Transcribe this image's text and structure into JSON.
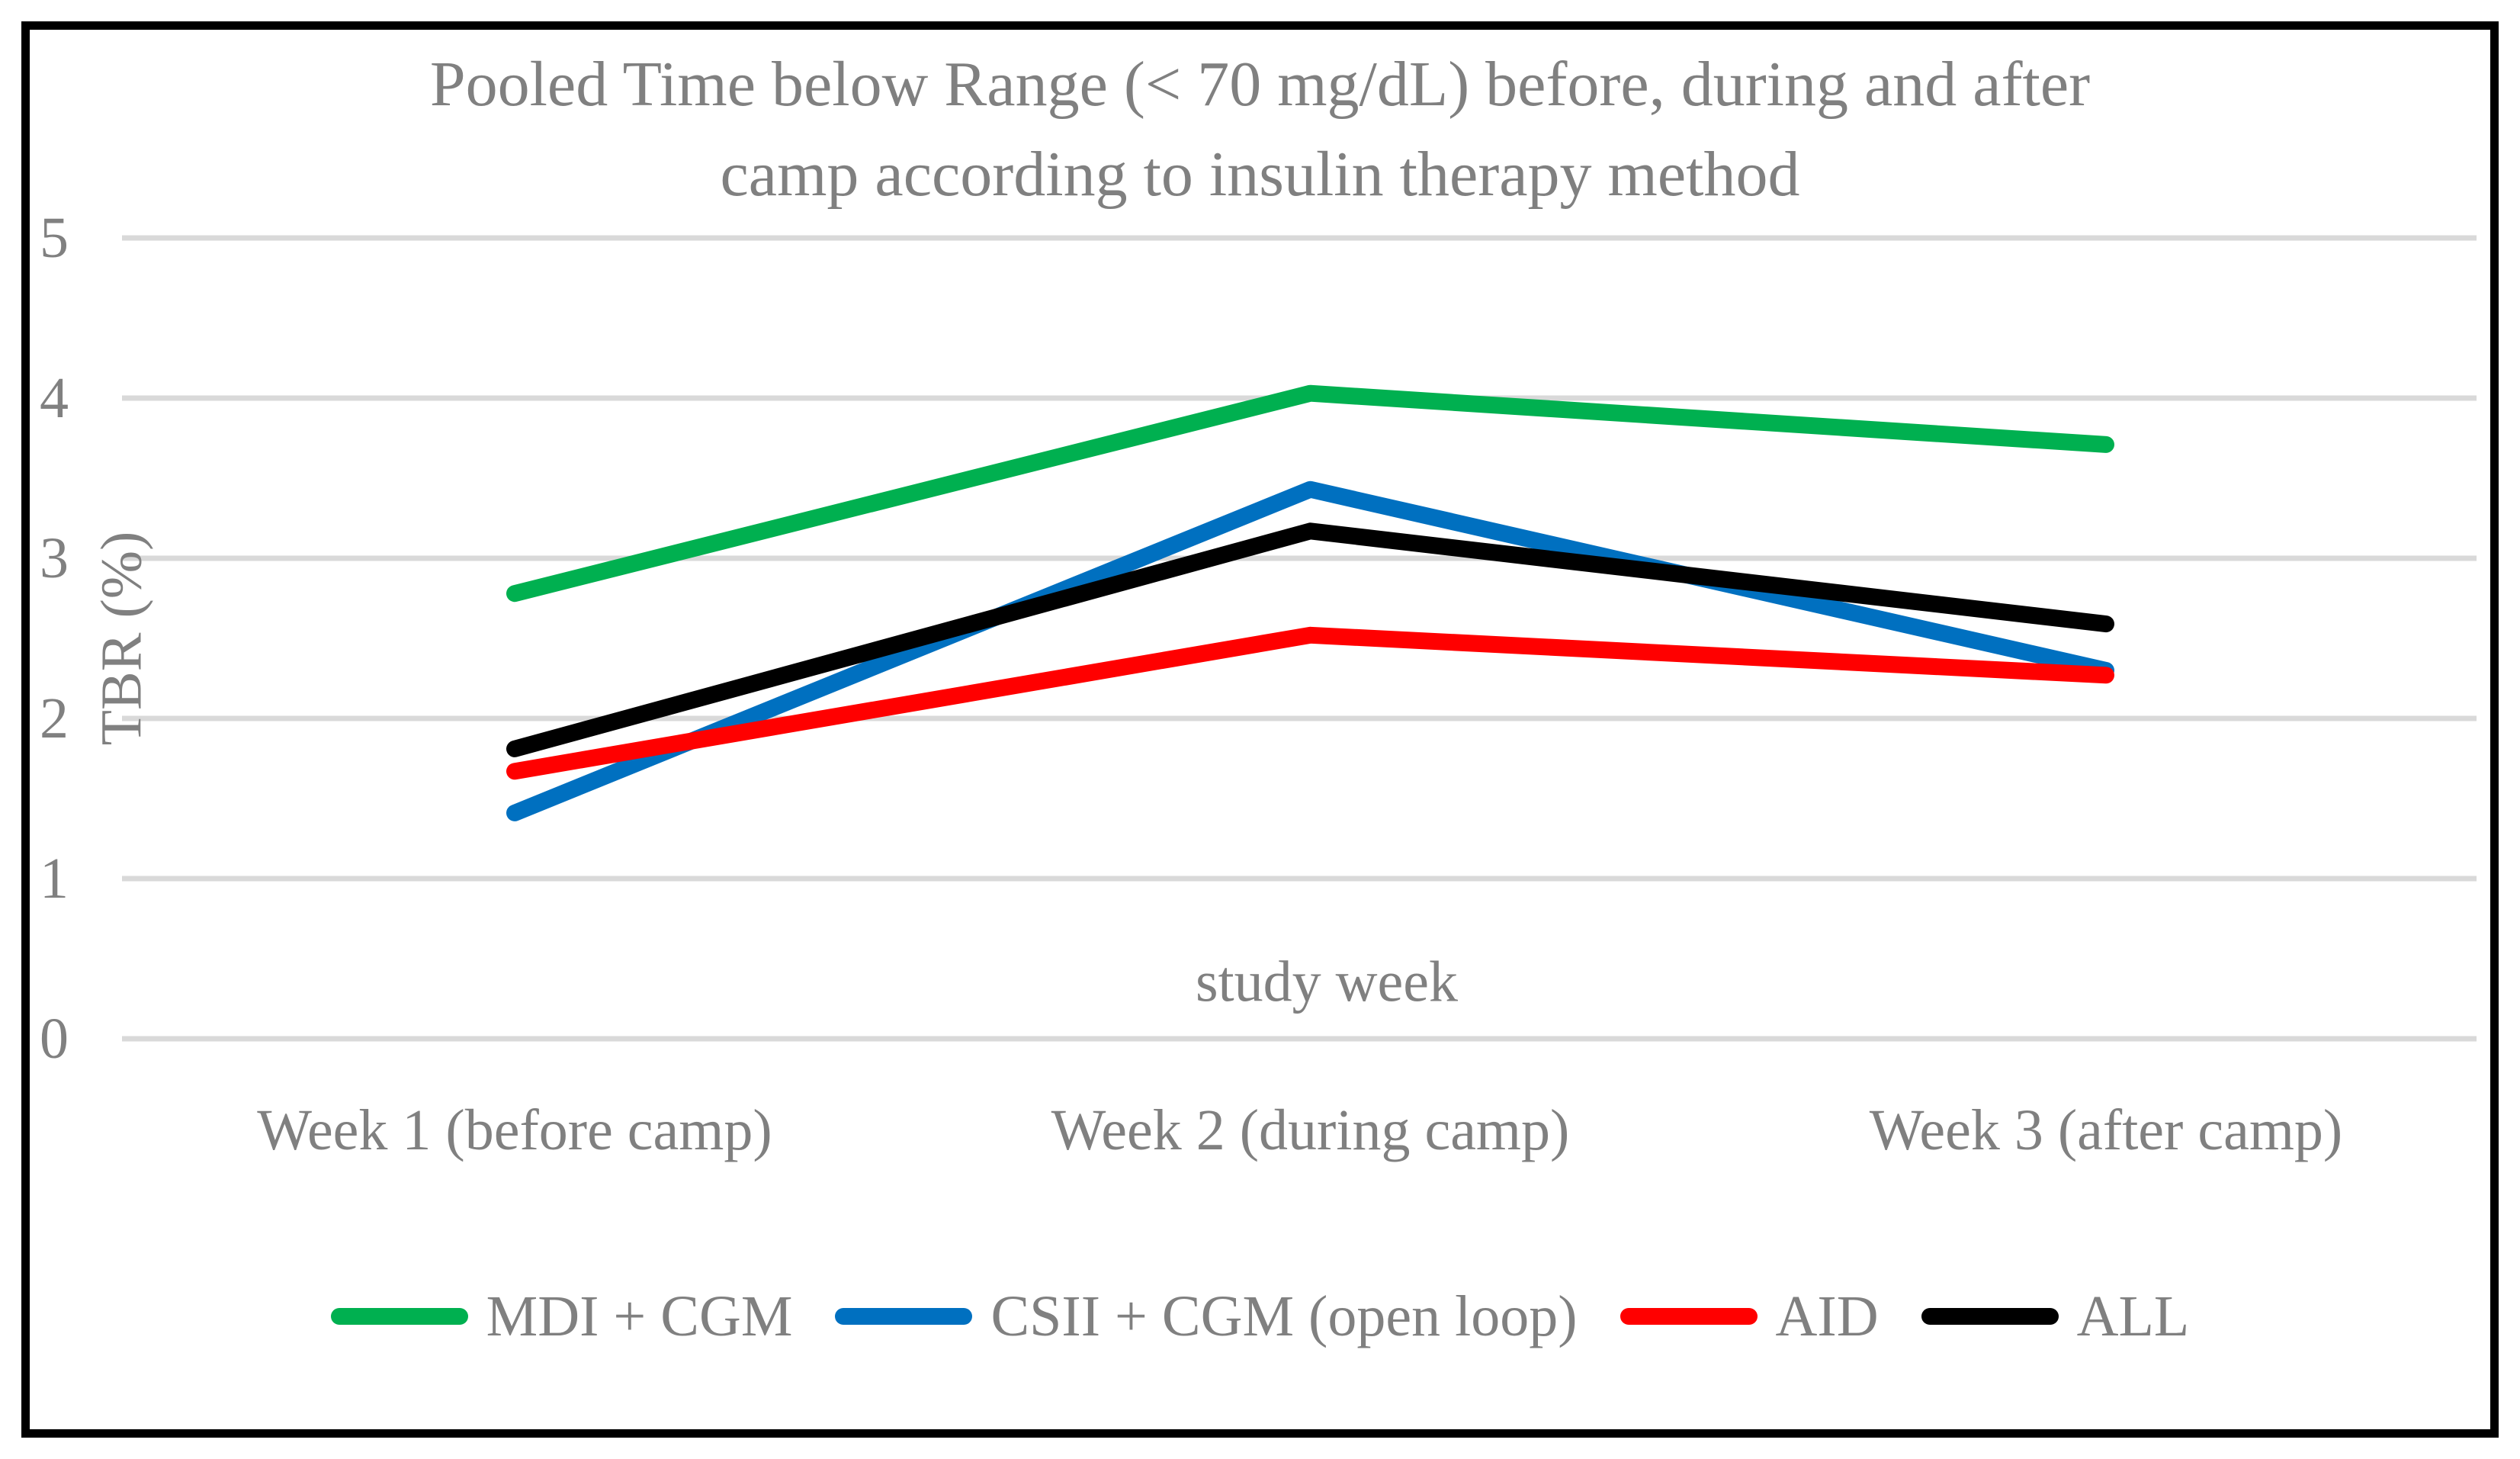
{
  "figure": {
    "title_lines": [
      "Pooled Time below Range (< 70 mg/dL) before, during and after",
      "camp according to insulin therapy method"
    ],
    "y_axis_label": "TBR (%)",
    "inner_x_label": "study week"
  },
  "chart_data": {
    "type": "line",
    "title": "Pooled Time below Range (< 70 mg/dL) before, during and after camp according to insulin therapy method",
    "categories": [
      "Week 1 (before camp)",
      "Week 2 (during camp)",
      "Week 3 (after camp)"
    ],
    "series": [
      {
        "name": "MDI + CGM",
        "color": "#00B050",
        "values": [
          2.78,
          4.03,
          3.71
        ]
      },
      {
        "name": "CSII + CGM (open loop)",
        "color": "#0070C0",
        "values": [
          1.41,
          3.43,
          2.3
        ]
      },
      {
        "name": "AID",
        "color": "#FF0000",
        "values": [
          1.67,
          2.52,
          2.27
        ]
      },
      {
        "name": "ALL",
        "color": "#000000",
        "values": [
          1.81,
          3.17,
          2.59
        ]
      }
    ],
    "xlabel": "study week",
    "ylabel": "TBR (%)",
    "ylim": [
      0,
      5
    ],
    "yticks": [
      0,
      1,
      2,
      3,
      4,
      5
    ],
    "grid": "horizontal",
    "legend_position": "bottom"
  },
  "palette": {
    "gridline": "#D9D9D9",
    "text_gray": "#808080",
    "frame_border": "#000000",
    "background": "#FFFFFF"
  }
}
